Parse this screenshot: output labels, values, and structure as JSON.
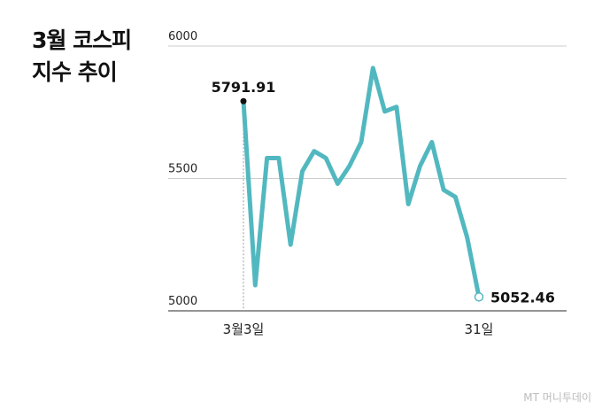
{
  "chart_data": {
    "type": "line",
    "title": "3월 코스피\n지수 추이",
    "categories": [
      "3월3일",
      null,
      null,
      null,
      null,
      null,
      null,
      null,
      null,
      null,
      null,
      null,
      null,
      null,
      null,
      null,
      null,
      null,
      null,
      null,
      "31일"
    ],
    "series": [
      {
        "name": "코스피",
        "color": "#52b8c0",
        "values": [
          5791.91,
          5097,
          5577,
          5577,
          5250,
          5527,
          5603,
          5577,
          5480,
          5547,
          5637,
          5917,
          5753,
          5770,
          5403,
          5547,
          5637,
          5457,
          5430,
          5277,
          5052.46
        ]
      }
    ],
    "ylim": [
      5000,
      6000
    ],
    "yticks": [
      5000,
      5500,
      6000
    ],
    "grid": true,
    "source": "MT 머니투데이"
  }
}
